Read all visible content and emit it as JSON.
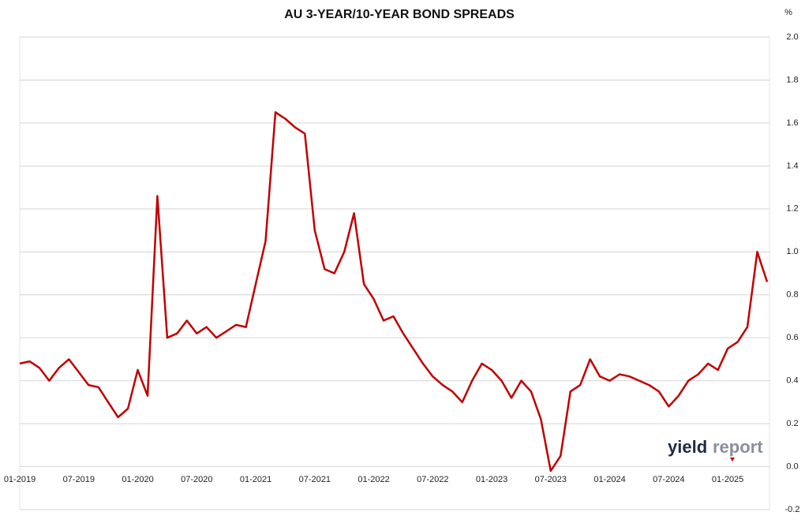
{
  "chart_data": {
    "type": "line",
    "title": "AU 3-YEAR/10-YEAR BOND SPREADS",
    "y_unit": "%",
    "x": [
      "01-2019",
      "02-2019",
      "03-2019",
      "04-2019",
      "05-2019",
      "06-2019",
      "07-2019",
      "08-2019",
      "09-2019",
      "10-2019",
      "11-2019",
      "12-2019",
      "01-2020",
      "02-2020",
      "03-2020",
      "04-2020",
      "05-2020",
      "06-2020",
      "07-2020",
      "08-2020",
      "09-2020",
      "10-2020",
      "11-2020",
      "12-2020",
      "01-2021",
      "02-2021",
      "03-2021",
      "04-2021",
      "05-2021",
      "06-2021",
      "07-2021",
      "08-2021",
      "09-2021",
      "10-2021",
      "11-2021",
      "12-2021",
      "01-2022",
      "02-2022",
      "03-2022",
      "04-2022",
      "05-2022",
      "06-2022",
      "07-2022",
      "08-2022",
      "09-2022",
      "10-2022",
      "11-2022",
      "12-2022",
      "01-2023",
      "02-2023",
      "03-2023",
      "04-2023",
      "05-2023",
      "06-2023",
      "07-2023",
      "08-2023",
      "09-2023",
      "10-2023",
      "11-2023",
      "12-2023",
      "01-2024",
      "02-2024",
      "03-2024",
      "04-2024",
      "05-2024",
      "06-2024",
      "07-2024",
      "08-2024",
      "09-2024",
      "10-2024",
      "11-2024",
      "12-2024",
      "01-2025",
      "02-2025",
      "03-2025",
      "04-2025",
      "05-2025"
    ],
    "series": [
      {
        "name": "AU 3-year/10-year spread",
        "color": "#c00000",
        "values": [
          0.48,
          0.49,
          0.46,
          0.4,
          0.46,
          0.5,
          0.44,
          0.38,
          0.37,
          0.3,
          0.23,
          0.27,
          0.45,
          0.33,
          1.26,
          0.6,
          0.62,
          0.68,
          0.62,
          0.65,
          0.6,
          0.63,
          0.66,
          0.65,
          0.85,
          1.05,
          1.65,
          1.62,
          1.58,
          1.55,
          1.1,
          0.92,
          0.9,
          1.0,
          1.18,
          0.85,
          0.78,
          0.68,
          0.7,
          0.62,
          0.55,
          0.48,
          0.42,
          0.38,
          0.35,
          0.3,
          0.4,
          0.48,
          0.45,
          0.4,
          0.32,
          0.4,
          0.35,
          0.22,
          -0.02,
          0.05,
          0.35,
          0.38,
          0.5,
          0.42,
          0.4,
          0.43,
          0.42,
          0.4,
          0.38,
          0.35,
          0.28,
          0.33,
          0.4,
          0.43,
          0.48,
          0.45,
          0.55,
          0.58,
          0.65,
          1.0,
          0.86
        ]
      }
    ],
    "xticks": [
      "01-2019",
      "07-2019",
      "01-2020",
      "07-2020",
      "01-2021",
      "07-2021",
      "01-2022",
      "07-2022",
      "01-2023",
      "07-2023",
      "01-2024",
      "07-2024",
      "01-2025"
    ],
    "ylim": [
      -0.2,
      2.0
    ],
    "yticks": [
      {
        "value": 2.0,
        "label": "2.0"
      },
      1.8,
      1.6,
      1.4,
      1.2,
      {
        "value": 1.0,
        "label": "1.0"
      },
      0.8,
      0.6,
      0.4,
      0.2,
      {
        "value": 0.0,
        "label": "0.0"
      },
      -0.2
    ],
    "grid": true,
    "logo": {
      "part1": "yield",
      "part2": "report"
    }
  }
}
